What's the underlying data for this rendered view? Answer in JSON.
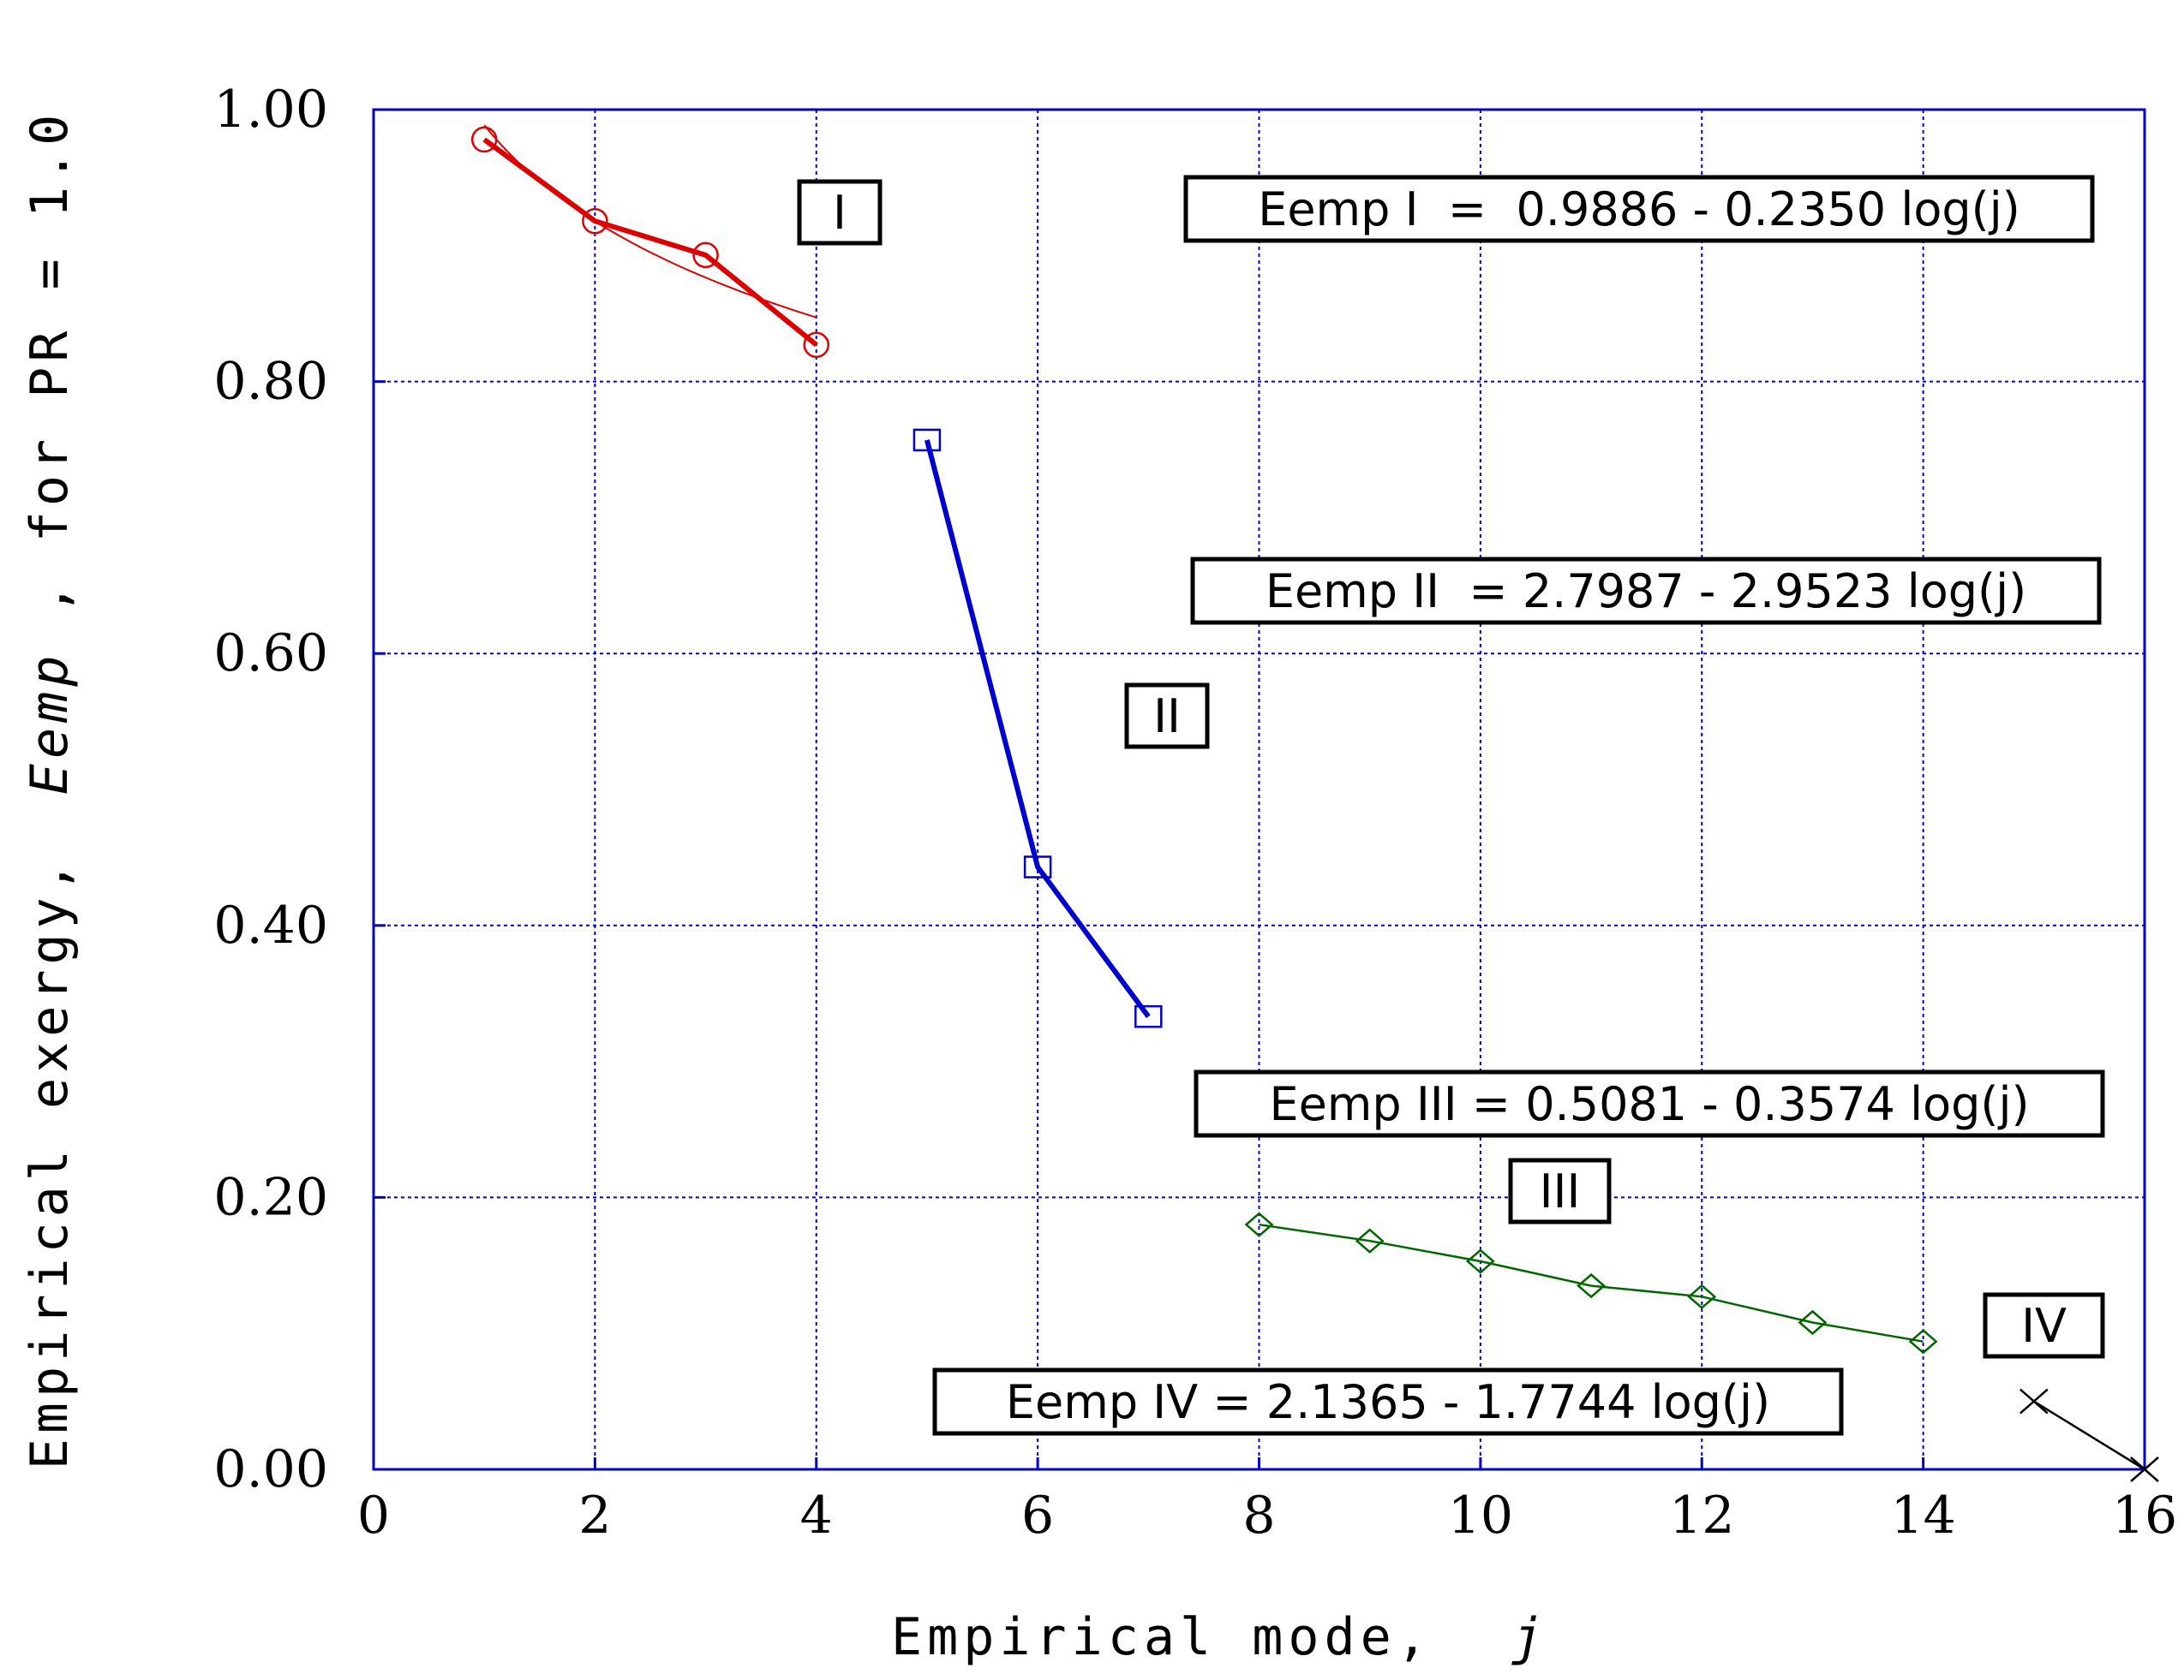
{
  "chart_data": {
    "type": "line",
    "xlabel": "Empirical mode,",
    "xlabel_var": "j",
    "ylabel_prefix": "Empirical exergy,",
    "ylabel_var": "Eemp",
    "ylabel_suffix": ", for PR = 1.0",
    "xlim": [
      0,
      16
    ],
    "ylim": [
      0,
      1.0
    ],
    "x_ticks": [
      "0",
      "2",
      "4",
      "6",
      "8",
      "10",
      "12",
      "14",
      "16"
    ],
    "y_ticks": [
      "0.00",
      "0.20",
      "0.40",
      "0.60",
      "0.80",
      "1.00"
    ],
    "grid": true,
    "series": [
      {
        "name": "I",
        "color": "#dd0000",
        "marker": "circle",
        "x": [
          1,
          2,
          3,
          4
        ],
        "y": [
          0.978,
          0.918,
          0.893,
          0.827
        ],
        "fit": {
          "a": 0.9886,
          "b": 0.235,
          "x_range": [
            1,
            4
          ]
        }
      },
      {
        "name": "II",
        "color": "#0000cc",
        "marker": "square",
        "x": [
          5,
          6,
          7
        ],
        "y": [
          0.757,
          0.443,
          0.333
        ]
      },
      {
        "name": "III",
        "color": "#006600",
        "marker": "diamond",
        "x": [
          8,
          9,
          10,
          11,
          12,
          13,
          14
        ],
        "y": [
          0.18,
          0.168,
          0.153,
          0.135,
          0.127,
          0.108,
          0.094
        ]
      },
      {
        "name": "IV",
        "color": "#000000",
        "marker": "x",
        "x": [
          15,
          16
        ],
        "y": [
          0.05,
          0.0
        ]
      }
    ],
    "group_labels": [
      "I",
      "II",
      "III",
      "IV"
    ],
    "equations": [
      "Eemp I  =  0.9886 - 0.2350 log(j)",
      "Eemp II  = 2.7987 - 2.9523 log(j)",
      "Eemp III = 0.5081 - 0.3574 log(j)",
      "Eemp IV = 2.1365 - 1.7744 log(j)"
    ]
  }
}
